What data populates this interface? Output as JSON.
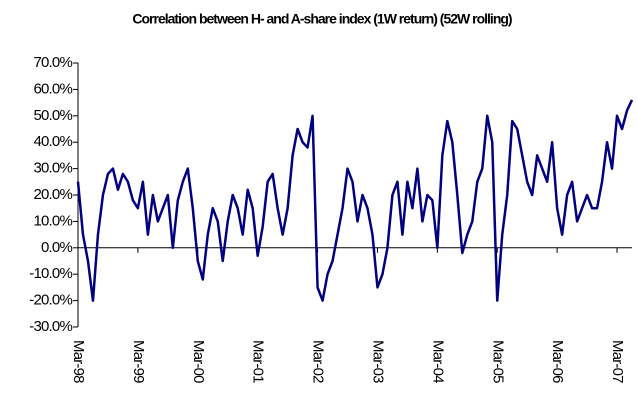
{
  "chart_data": {
    "type": "line",
    "title": "Correlation between H- and A-share index (1W return) (52W rolling)",
    "categories": [
      "Mar-98",
      null,
      null,
      null,
      null,
      null,
      null,
      null,
      null,
      null,
      null,
      null,
      "Mar-99",
      null,
      null,
      null,
      null,
      null,
      null,
      null,
      null,
      null,
      null,
      null,
      "Mar-00",
      null,
      null,
      null,
      null,
      null,
      null,
      null,
      null,
      null,
      null,
      null,
      "Mar-01",
      null,
      null,
      null,
      null,
      null,
      null,
      null,
      null,
      null,
      null,
      null,
      "Mar-02",
      null,
      null,
      null,
      null,
      null,
      null,
      null,
      null,
      null,
      null,
      null,
      "Mar-03",
      null,
      null,
      null,
      null,
      null,
      null,
      null,
      null,
      null,
      null,
      null,
      "Mar-04",
      null,
      null,
      null,
      null,
      null,
      null,
      null,
      null,
      null,
      null,
      null,
      "Mar-05",
      null,
      null,
      null,
      null,
      null,
      null,
      null,
      null,
      null,
      null,
      null,
      "Mar-06",
      null,
      null,
      null,
      null,
      null,
      null,
      null,
      null,
      null,
      null,
      null,
      "Mar-07",
      null,
      null,
      null
    ],
    "series": [
      {
        "color": "#000080",
        "values": [
          25,
          5,
          -5,
          -20,
          5,
          20,
          28,
          30,
          22,
          28,
          25,
          18,
          15,
          25,
          5,
          20,
          10,
          15,
          20,
          0,
          18,
          25,
          30,
          15,
          -5,
          -12,
          5,
          15,
          10,
          -5,
          10,
          20,
          15,
          5,
          22,
          15,
          -3,
          8,
          25,
          28,
          15,
          5,
          15,
          35,
          45,
          40,
          38,
          50,
          -15,
          -20,
          -10,
          -5,
          5,
          15,
          30,
          25,
          10,
          20,
          15,
          5,
          -15,
          -10,
          0,
          20,
          25,
          5,
          25,
          15,
          30,
          10,
          20,
          18,
          0,
          35,
          48,
          40,
          20,
          -2,
          5,
          10,
          25,
          30,
          50,
          40,
          -20,
          5,
          20,
          48,
          45,
          35,
          25,
          20,
          35,
          30,
          25,
          40,
          15,
          5,
          20,
          25,
          10,
          15,
          20,
          15,
          15,
          25,
          40,
          30,
          50,
          45,
          52,
          56
        ]
      }
    ],
    "ylim": [
      -30,
      70
    ],
    "yticks": [
      {
        "value": -30,
        "label": "-30.0%"
      },
      {
        "value": -20,
        "label": "-20.0%"
      },
      {
        "value": -10,
        "label": "-10.0%"
      },
      {
        "value": 0,
        "label": "0.0%"
      },
      {
        "value": 10,
        "label": "10.0%"
      },
      {
        "value": 20,
        "label": "20.0%"
      },
      {
        "value": 30,
        "label": "30.0%"
      },
      {
        "value": 40,
        "label": "40.0%"
      },
      {
        "value": 50,
        "label": "50.0%"
      },
      {
        "value": 60,
        "label": "60.0%"
      },
      {
        "value": 70,
        "label": "70.0%"
      }
    ]
  }
}
